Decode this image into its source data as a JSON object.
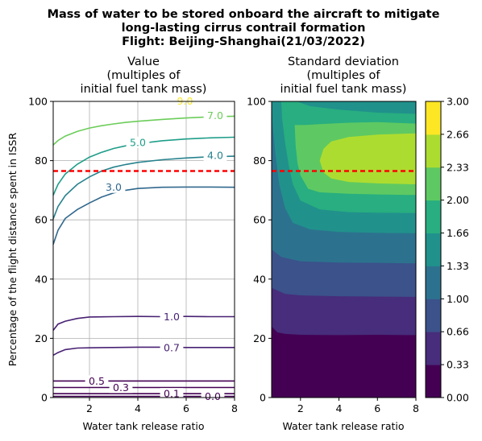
{
  "figure": {
    "suptitle": [
      "Mass of water to be stored onboard the aircraft to mitigate",
      "long-lasting cirrus contrail formation",
      "Flight: Beijing-Shanghai(21/03/2022)"
    ]
  },
  "chart_data": [
    {
      "type": "contour",
      "title": [
        "Value",
        "(multiples of",
        "initial fuel tank mass)"
      ],
      "xlabel": "Water tank release ratio",
      "ylabel": "Percentage of the flight distance spent in ISSR",
      "xlim": [
        0.5,
        8
      ],
      "ylim": [
        0,
        100
      ],
      "xticks": [
        2,
        4,
        6,
        8
      ],
      "yticks": [
        0,
        20,
        40,
        60,
        80,
        100
      ],
      "grid": true,
      "reference_line": {
        "y": 76.5,
        "color": "#ff0000",
        "style": "dashed"
      },
      "contours": [
        {
          "level": "0.0",
          "color": "#440154",
          "label_x": 7.1,
          "label_y": 0.4,
          "points": [
            [
              0.5,
              0.4
            ],
            [
              8,
              0.4
            ]
          ]
        },
        {
          "level": "0.1",
          "color": "#440154",
          "label_x": 5.4,
          "label_y": 1.3,
          "points": [
            [
              0.5,
              1.3
            ],
            [
              8,
              1.3
            ]
          ]
        },
        {
          "level": "0.3",
          "color": "#440154",
          "label_x": 3.3,
          "label_y": 3.4,
          "points": [
            [
              0.5,
              3.4
            ],
            [
              8,
              3.4
            ]
          ]
        },
        {
          "level": "0.5",
          "color": "#440154",
          "label_x": 2.3,
          "label_y": 5.6,
          "points": [
            [
              0.5,
              5.6
            ],
            [
              8,
              5.6
            ]
          ]
        },
        {
          "level": "0.7",
          "color": "#482173",
          "label_x": 5.4,
          "label_y": 16.9,
          "points": [
            [
              0.5,
              14.3
            ],
            [
              0.7,
              15.2
            ],
            [
              1.0,
              16.2
            ],
            [
              1.5,
              16.7
            ],
            [
              2.0,
              16.8
            ],
            [
              3.0,
              16.9
            ],
            [
              4.0,
              17.0
            ],
            [
              5.0,
              17.0
            ],
            [
              6.0,
              16.9
            ],
            [
              7.0,
              16.9
            ],
            [
              8.0,
              16.9
            ]
          ]
        },
        {
          "level": "1.0",
          "color": "#482173",
          "label_x": 5.4,
          "label_y": 27.3,
          "points": [
            [
              0.5,
              22.7
            ],
            [
              0.7,
              24.8
            ],
            [
              1.0,
              25.8
            ],
            [
              1.5,
              26.7
            ],
            [
              2.0,
              27.2
            ],
            [
              3.0,
              27.3
            ],
            [
              4.0,
              27.4
            ],
            [
              5.0,
              27.3
            ],
            [
              6.0,
              27.4
            ],
            [
              7.0,
              27.3
            ],
            [
              8.0,
              27.3
            ]
          ]
        },
        {
          "level": "3.0",
          "color": "#31688e",
          "label_x": 3.0,
          "label_y": 71.0,
          "points": [
            [
              0.5,
              51.7
            ],
            [
              0.7,
              56.5
            ],
            [
              1.0,
              60.5
            ],
            [
              1.5,
              63.5
            ],
            [
              2.0,
              65.7
            ],
            [
              2.5,
              67.7
            ],
            [
              3.0,
              69.1
            ],
            [
              3.5,
              70.0
            ],
            [
              4.0,
              70.6
            ],
            [
              5.0,
              71.0
            ],
            [
              6.0,
              71.1
            ],
            [
              7.0,
              71.1
            ],
            [
              8.0,
              71.0
            ]
          ]
        },
        {
          "level": "4.0",
          "color": "#26828e",
          "label_x": 7.2,
          "label_y": 81.8,
          "points": [
            [
              0.5,
              60.3
            ],
            [
              0.7,
              64.5
            ],
            [
              1.0,
              68.2
            ],
            [
              1.5,
              72.0
            ],
            [
              2.0,
              74.5
            ],
            [
              2.5,
              76.5
            ],
            [
              3.0,
              77.8
            ],
            [
              3.5,
              78.7
            ],
            [
              4.0,
              79.4
            ],
            [
              5.0,
              80.3
            ],
            [
              6.0,
              80.9
            ],
            [
              7.0,
              81.3
            ],
            [
              8.0,
              81.5
            ]
          ]
        },
        {
          "level": "5.0",
          "color": "#1f9e89",
          "label_x": 4.0,
          "label_y": 86.2,
          "points": [
            [
              0.5,
              68.3
            ],
            [
              0.7,
              72.0
            ],
            [
              1.0,
              75.5
            ],
            [
              1.5,
              78.8
            ],
            [
              2.0,
              81.2
            ],
            [
              2.5,
              82.8
            ],
            [
              3.0,
              84.1
            ],
            [
              3.5,
              85.0
            ],
            [
              4.0,
              85.7
            ],
            [
              5.0,
              86.7
            ],
            [
              6.0,
              87.3
            ],
            [
              7.0,
              87.7
            ],
            [
              8.0,
              87.9
            ]
          ]
        },
        {
          "level": "7.0",
          "color": "#6ccd5a",
          "label_x": 7.2,
          "label_y": 95.2,
          "points": [
            [
              0.5,
              85.3
            ],
            [
              0.7,
              86.8
            ],
            [
              1.0,
              88.3
            ],
            [
              1.5,
              89.9
            ],
            [
              2.0,
              91.0
            ],
            [
              2.5,
              91.8
            ],
            [
              3.0,
              92.4
            ],
            [
              3.5,
              92.9
            ],
            [
              4.0,
              93.3
            ],
            [
              5.0,
              93.9
            ],
            [
              6.0,
              94.4
            ],
            [
              7.0,
              94.8
            ],
            [
              8.0,
              95.0
            ]
          ]
        },
        {
          "level": "9.0",
          "color": "#fde725",
          "label_x": 5.95,
          "label_y": 100.2,
          "points": []
        }
      ]
    },
    {
      "type": "filled-contour",
      "title": [
        "Standard deviation",
        "(multiples of",
        "initial fuel tank mass)"
      ],
      "xlabel": "Water tank release ratio",
      "ylabel": "",
      "xlim": [
        0.5,
        8
      ],
      "ylim": [
        0,
        100
      ],
      "xticks": [
        2,
        4,
        6,
        8
      ],
      "yticks": [
        0,
        20,
        40,
        60,
        80,
        100
      ],
      "grid": false,
      "reference_line": {
        "y": 76.5,
        "color": "#ff0000",
        "style": "dashed"
      },
      "background_color": "#440154",
      "bands": [
        {
          "range": [
            0.33,
            0.66
          ],
          "color": "#472d7b",
          "boundary": [
            [
              0.5,
              0
            ],
            [
              0.5,
              24
            ],
            [
              0.8,
              22
            ],
            [
              1.2,
              21.5
            ],
            [
              2.0,
              21.2
            ],
            [
              4.0,
              21.1
            ],
            [
              6.0,
              21.2
            ],
            [
              8.0,
              21.1
            ],
            [
              8.0,
              100
            ],
            [
              0.5,
              100
            ]
          ]
        },
        {
          "range": [
            0.66,
            1.0
          ],
          "color": "#3b528b",
          "boundary": [
            [
              0.5,
              37
            ],
            [
              1.2,
              35
            ],
            [
              2.0,
              34.5
            ],
            [
              4.0,
              34.2
            ],
            [
              6.0,
              34.1
            ],
            [
              8.0,
              34.0
            ],
            [
              8.0,
              100
            ],
            [
              0.5,
              100
            ]
          ]
        },
        {
          "range": [
            1.0,
            1.33
          ],
          "color": "#2c728e",
          "boundary": [
            [
              0.5,
              50
            ],
            [
              1.0,
              47.5
            ],
            [
              2.0,
              46.0
            ],
            [
              4.0,
              45.6
            ],
            [
              6.0,
              45.5
            ],
            [
              8.0,
              45.3
            ],
            [
              8.0,
              100
            ],
            [
              0.5,
              100
            ]
          ]
        },
        {
          "range": [
            1.33,
            1.66
          ],
          "color": "#21918c",
          "boundary": [
            [
              0.5,
              100
            ],
            [
              0.55,
              92
            ],
            [
              0.7,
              82
            ],
            [
              0.9,
              72
            ],
            [
              1.2,
              64
            ],
            [
              1.6,
              59
            ],
            [
              2.5,
              56.8
            ],
            [
              4.0,
              55.9
            ],
            [
              6.0,
              55.6
            ],
            [
              8.0,
              55.5
            ],
            [
              8.0,
              100
            ]
          ]
        },
        {
          "range": [
            1.66,
            2.0
          ],
          "color": "#28ae80",
          "boundary": [
            [
              1.0,
              100
            ],
            [
              1.05,
              94
            ],
            [
              1.2,
              86
            ],
            [
              1.4,
              78
            ],
            [
              1.6,
              72
            ],
            [
              2.0,
              66.5
            ],
            [
              3.0,
              63.5
            ],
            [
              4.5,
              62.6
            ],
            [
              6.0,
              62.4
            ],
            [
              8.0,
              62.3
            ],
            [
              8.0,
              95.8
            ],
            [
              6.0,
              96.2
            ],
            [
              4.0,
              97.2
            ],
            [
              2.5,
              98.4
            ],
            [
              1.8,
              100
            ]
          ]
        },
        {
          "range": [
            2.0,
            2.33
          ],
          "color": "#5ec962",
          "boundary": [
            [
              1.7,
              92
            ],
            [
              1.75,
              85
            ],
            [
              1.85,
              79
            ],
            [
              2.0,
              75
            ],
            [
              2.4,
              70.5
            ],
            [
              3.0,
              69.3
            ],
            [
              4.5,
              68.8
            ],
            [
              6.0,
              68.6
            ],
            [
              8.0,
              68.4
            ],
            [
              8.0,
              92.5
            ],
            [
              6.0,
              93.0
            ],
            [
              4.5,
              92.8
            ],
            [
              3.0,
              92.3
            ],
            [
              2.2,
              92.0
            ]
          ]
        },
        {
          "range": [
            2.33,
            2.66
          ],
          "color": "#addc30",
          "boundary": [
            [
              3.0,
              80
            ],
            [
              3.2,
              84
            ],
            [
              3.6,
              86.5
            ],
            [
              4.5,
              88.0
            ],
            [
              6.0,
              88.8
            ],
            [
              8.0,
              89.2
            ],
            [
              8.0,
              72.0
            ],
            [
              6.0,
              72.3
            ],
            [
              4.5,
              72.8
            ],
            [
              3.6,
              74.0
            ],
            [
              3.2,
              76.0
            ]
          ]
        }
      ],
      "colorbar": {
        "ticks": [
          "0.00",
          "0.33",
          "0.66",
          "1.00",
          "1.33",
          "1.66",
          "2.00",
          "2.33",
          "2.66",
          "3.00"
        ],
        "colors": [
          "#440154",
          "#472d7b",
          "#3b528b",
          "#2c728e",
          "#21918c",
          "#28ae80",
          "#5ec962",
          "#addc30",
          "#fde725"
        ]
      }
    }
  ]
}
